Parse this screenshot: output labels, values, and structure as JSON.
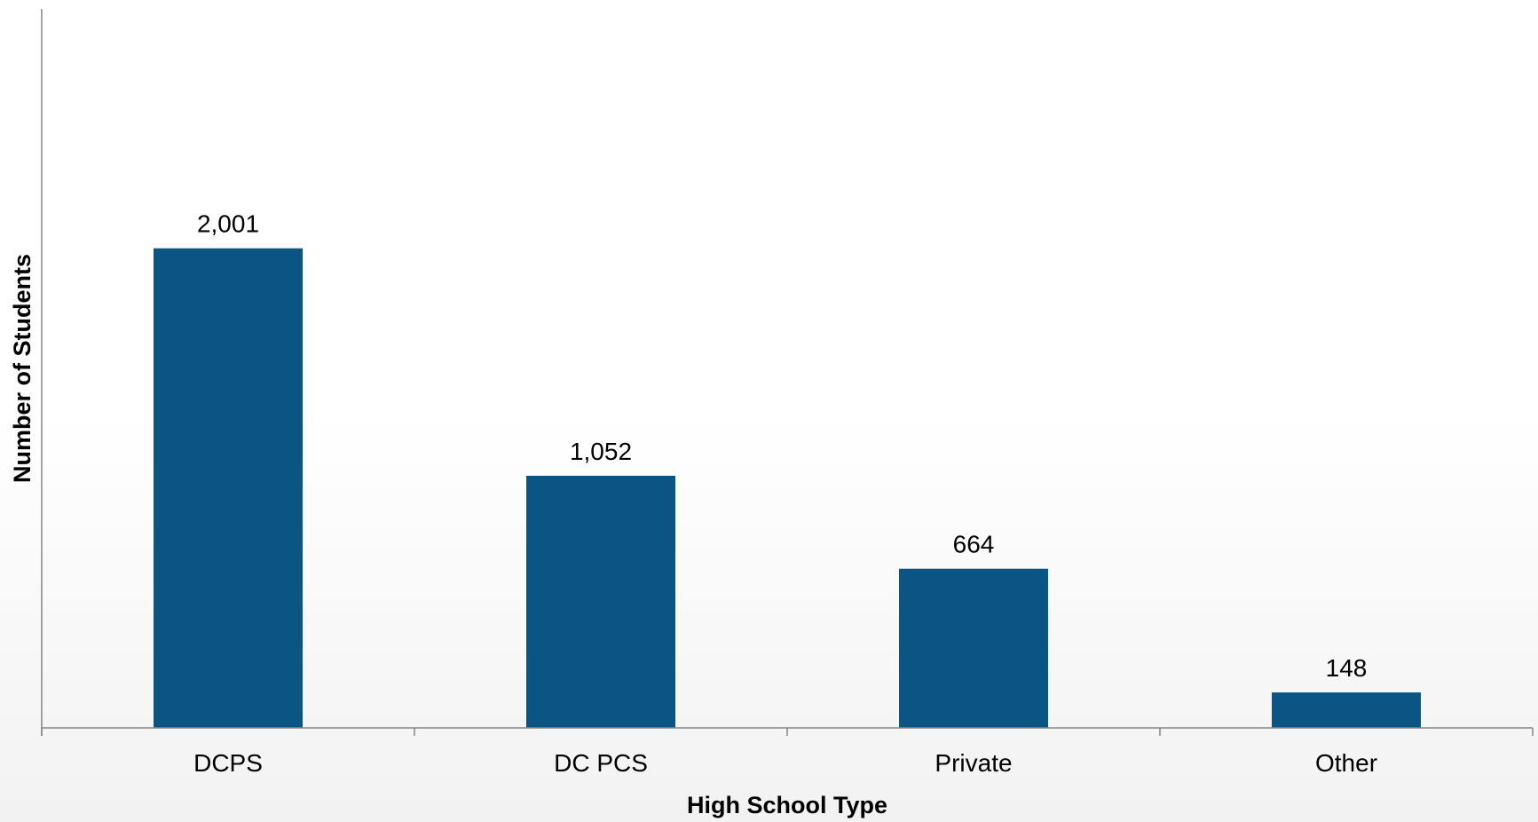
{
  "chart_data": {
    "type": "bar",
    "categories": [
      "DCPS",
      "DC PCS",
      "Private",
      "Other"
    ],
    "values": [
      2001,
      1052,
      664,
      148
    ],
    "data_labels": [
      "2,001",
      "1,052",
      "664",
      "148"
    ],
    "title": "",
    "xlabel": "High School Type",
    "ylabel": "Number of Students",
    "ylim": [
      0,
      3000
    ],
    "grid": false,
    "legend": "none",
    "colors": {
      "bar": "#0b5584",
      "axis": "#868686"
    }
  }
}
